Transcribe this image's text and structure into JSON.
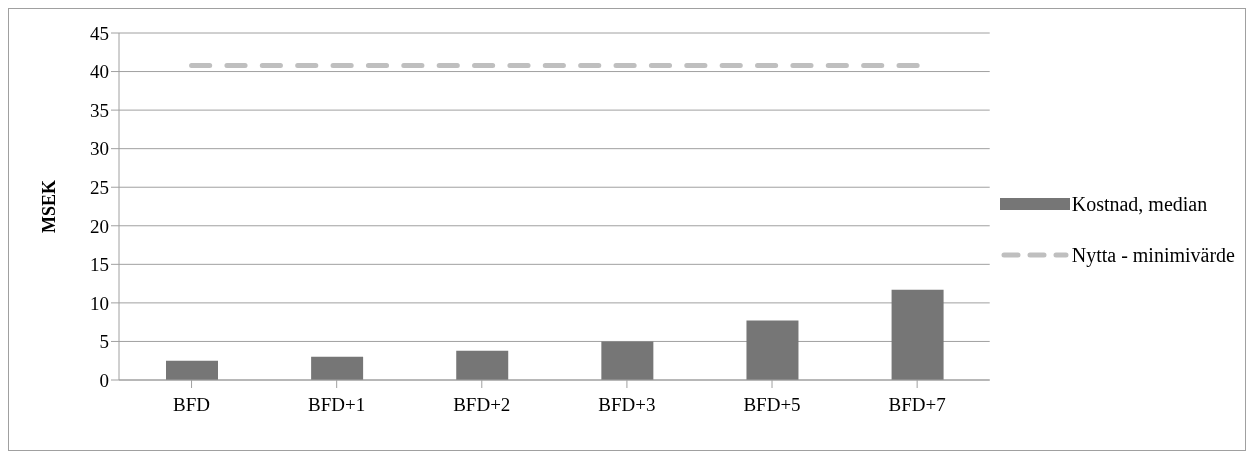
{
  "chart_data": {
    "type": "bar",
    "ylabel": "MSEK",
    "categories": [
      "BFD",
      "BFD+1",
      "BFD+2",
      "BFD+3",
      "BFD+5",
      "BFD+7"
    ],
    "series": [
      {
        "name": "Kostnad, median",
        "color": "#767676",
        "values": [
          2.5,
          3.0,
          3.8,
          5.0,
          7.7,
          11.7
        ]
      },
      {
        "name": "Nytta - minimivärde",
        "type": "line",
        "line_style": "dashed",
        "marker": "none",
        "color": "#bfbfbf",
        "values": [
          40.8,
          40.8,
          40.8,
          40.8,
          40.8,
          40.8
        ]
      }
    ],
    "ylim": [
      0,
      45
    ],
    "yticks": [
      0,
      5,
      10,
      15,
      20,
      25,
      30,
      35,
      40,
      45
    ],
    "grid": "y",
    "legend": "right"
  }
}
